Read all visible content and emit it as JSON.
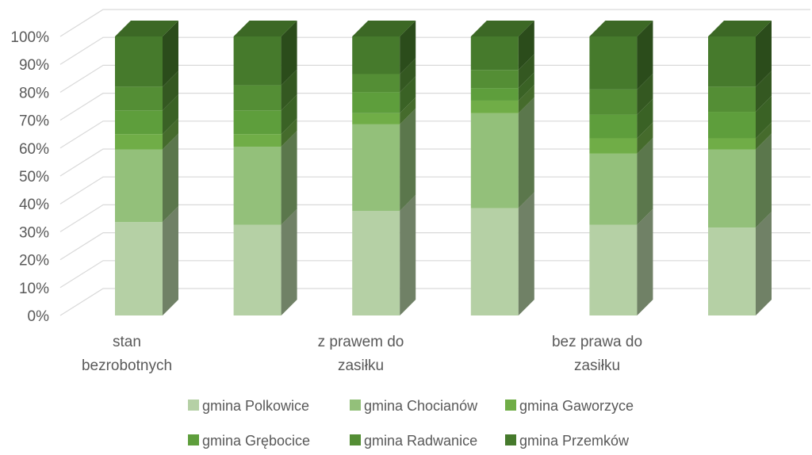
{
  "chart_data": {
    "type": "bar",
    "stacked": "percent",
    "three_d": true,
    "y_ticks": [
      "0%",
      "10%",
      "20%",
      "30%",
      "40%",
      "50%",
      "60%",
      "70%",
      "80%",
      "90%",
      "100%"
    ],
    "ylim": [
      0,
      100
    ],
    "grid": true,
    "legend_position": "bottom",
    "category_labels": [
      {
        "lines": [
          "stan",
          "bezrobotnych"
        ]
      },
      {
        "lines": [
          "z prawem do",
          "zasiłku"
        ]
      },
      {
        "lines": [
          "bez prawa do",
          "zasiłku"
        ]
      }
    ],
    "series": [
      {
        "name": "gmina Polkowice",
        "color": "#b5d0a5",
        "values": [
          33.5,
          32.5,
          37.5,
          38.5,
          32.5,
          31.5
        ]
      },
      {
        "name": "gmina Chocianów",
        "color": "#93c07a",
        "values": [
          26.0,
          28.0,
          31.0,
          34.0,
          25.5,
          28.0
        ]
      },
      {
        "name": "gmina Gaworzyce",
        "color": "#70ad47",
        "values": [
          5.5,
          4.5,
          4.0,
          4.5,
          5.5,
          4.0
        ]
      },
      {
        "name": "gmina Grębocice",
        "color": "#5e9e3c",
        "values": [
          8.5,
          8.5,
          7.5,
          4.5,
          8.5,
          9.5
        ]
      },
      {
        "name": "gmina Radwanice",
        "color": "#548e35",
        "values": [
          8.5,
          9.0,
          6.5,
          6.5,
          9.0,
          9.0
        ]
      },
      {
        "name": "gmina Przemków",
        "color": "#467a2c",
        "values": [
          18.0,
          17.5,
          13.5,
          12.0,
          19.0,
          18.0
        ]
      }
    ]
  }
}
